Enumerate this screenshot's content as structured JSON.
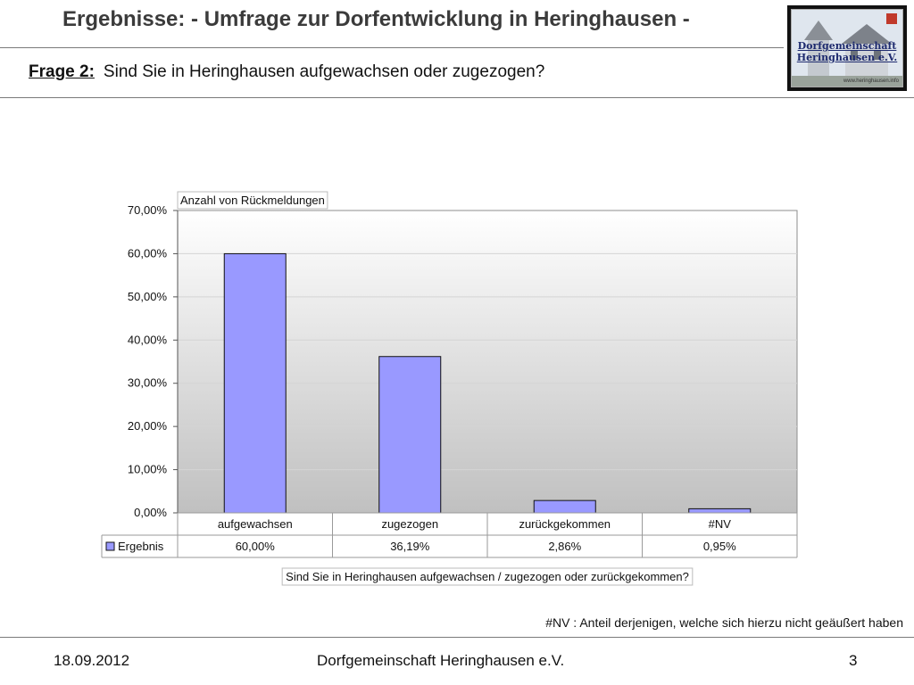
{
  "slide": {
    "title": "Ergebnisse: - Umfrage zur Dorfentwicklung in Heringhausen -",
    "question_label": "Frage 2:",
    "question_text": "Sind Sie in Heringhausen aufgewachsen oder zugezogen?",
    "logo_line1": "Dorfgemeinschaft",
    "logo_line2": "Heringhausen e.V.",
    "logo_small": "www.heringhausen.info",
    "footnote": "#NV :  Anteil derjenigen, welche sich hierzu nicht geäußert haben"
  },
  "footer": {
    "date": "18.09.2012",
    "org": "Dorfgemeinschaft Heringhausen e.V.",
    "page": "3"
  },
  "chart_data": {
    "type": "bar",
    "title": "Anzahl von Rückmeldungen",
    "xlabel": "Sind Sie in Heringhausen aufgewachsen / zugezogen oder zurückgekommen?",
    "ylabel": "",
    "categories": [
      "aufgewachsen",
      "zugezogen",
      "zurückgekommen",
      "#NV"
    ],
    "series": [
      {
        "name": "Ergebnis",
        "values": [
          60.0,
          36.19,
          2.86,
          0.95
        ],
        "labels": [
          "60,00%",
          "36,19%",
          "2,86%",
          "0,95%"
        ],
        "color": "#9999ff"
      }
    ],
    "ylim": [
      0,
      70
    ],
    "yticks": [
      0,
      10,
      20,
      30,
      40,
      50,
      60,
      70
    ],
    "ytick_labels": [
      "0,00%",
      "10,00%",
      "20,00%",
      "30,00%",
      "40,00%",
      "50,00%",
      "60,00%",
      "70,00%"
    ],
    "grid": true,
    "legend": "in data table",
    "data_table": true
  }
}
